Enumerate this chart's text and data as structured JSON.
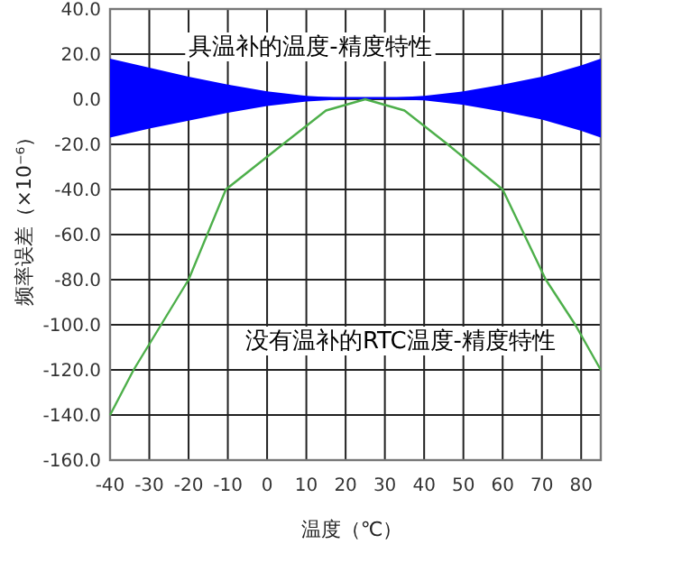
{
  "chart_data": {
    "type": "line",
    "xlabel": "温度（℃）",
    "ylabel": "频率误差（×10⁻⁶）",
    "xlim": [
      -40,
      85
    ],
    "ylim": [
      -160,
      40
    ],
    "xticks": [
      -40,
      -30,
      -20,
      -10,
      0,
      10,
      20,
      30,
      40,
      50,
      60,
      70,
      80
    ],
    "yticks": [
      {
        "value": 40,
        "label": "40.0"
      },
      {
        "value": 20,
        "label": "20.0"
      },
      {
        "value": 0,
        "label": "0.0"
      },
      {
        "value": -20,
        "label": "-20.0"
      },
      {
        "value": -40,
        "label": "-40.0"
      },
      {
        "value": -60,
        "label": "-60.0"
      },
      {
        "value": -80,
        "label": "-80.0"
      },
      {
        "value": -100,
        "label": "-100.0"
      },
      {
        "value": -120,
        "label": "-120.0"
      },
      {
        "value": -140,
        "label": "-140.0"
      },
      {
        "value": -160,
        "label": "-160.0"
      }
    ],
    "grid": true,
    "series": [
      {
        "color": "#0000ff",
        "x": [
          -40,
          -30,
          -20,
          -10,
          0,
          10,
          20,
          30,
          40,
          50,
          60,
          70,
          80,
          85
        ],
        "values": [
          0.5,
          0.5,
          0.5,
          0.5,
          0.5,
          0.5,
          0.5,
          0.5,
          0.5,
          0.5,
          0.5,
          0.5,
          0.5,
          0.5
        ],
        "upper": [
          18,
          14,
          10,
          6.5,
          3.5,
          1.5,
          0.5,
          0.5,
          1.5,
          3.5,
          6.5,
          10,
          15,
          18
        ],
        "lower": [
          -17,
          -13,
          -9.5,
          -6,
          -3,
          -1,
          0,
          0,
          -0.5,
          -2.5,
          -5.5,
          -9,
          -14,
          -17
        ]
      },
      {
        "color": "#4daf4a",
        "x": [
          -40,
          -34,
          -27,
          -20,
          -10.5,
          4,
          15,
          25,
          35,
          46,
          60,
          71,
          78.5,
          85
        ],
        "values": [
          -140,
          -120,
          -100,
          -80,
          -40,
          -20,
          -5,
          0,
          -5,
          -20,
          -40,
          -80,
          -100,
          -120
        ]
      }
    ],
    "annotations": [
      "具温补的温度-精度特性",
      "没有温补的RTC温度-精度特性"
    ]
  }
}
